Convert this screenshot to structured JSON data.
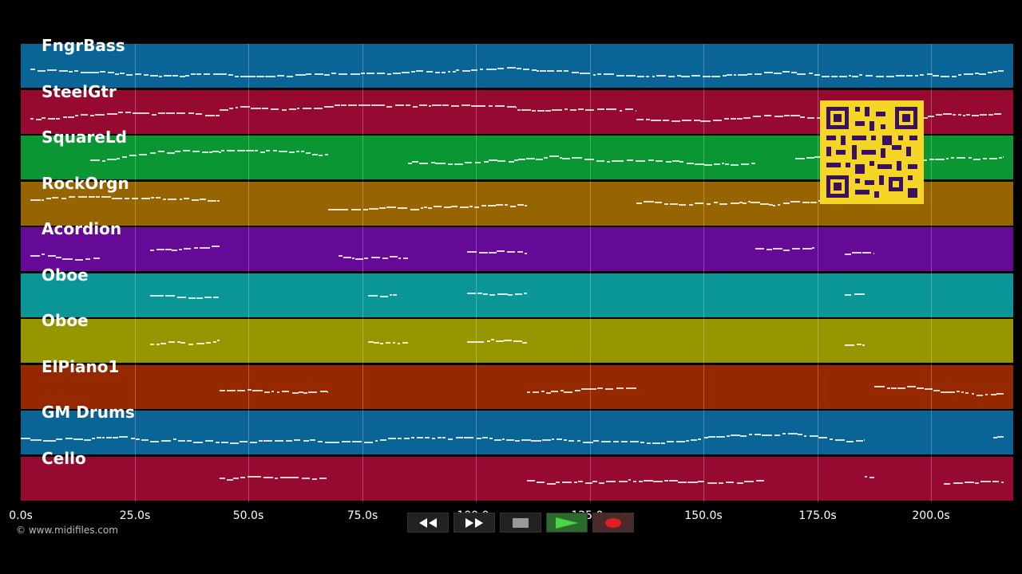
{
  "tracks": [
    {
      "name": "FngrBass",
      "color": "#0a6496"
    },
    {
      "name": "SteelGtr",
      "color": "#960a32"
    },
    {
      "name": "SquareLd",
      "color": "#0a9632"
    },
    {
      "name": "RockOrgn",
      "color": "#966400"
    },
    {
      "name": "Acordion",
      "color": "#640a96"
    },
    {
      "name": "Oboe",
      "color": "#0a9696"
    },
    {
      "name": "Oboe",
      "color": "#969600"
    },
    {
      "name": "ElPiano1",
      "color": "#962800"
    },
    {
      "name": "GM Drums",
      "color": "#0a6496"
    },
    {
      "name": "Cello",
      "color": "#960a32"
    }
  ],
  "timeline": {
    "unit": "s",
    "ticks": [
      "0.0s",
      "25.0s",
      "50.0s",
      "75.0s",
      "100.0s",
      "125.0s",
      "150.0s",
      "175.0s",
      "200.0s"
    ],
    "tick_values": [
      0,
      25,
      50,
      75,
      100,
      125,
      150,
      175,
      200
    ],
    "duration": 218
  },
  "credit": "© www.midifiles.com",
  "transport": {
    "rewind_icon": "rewind-icon",
    "forward_icon": "fast-forward-icon",
    "stop_icon": "stop-icon",
    "play_icon": "play-icon",
    "record_icon": "record-icon"
  },
  "qr_icon": "qr-code-icon",
  "note_color": "#ffffff"
}
